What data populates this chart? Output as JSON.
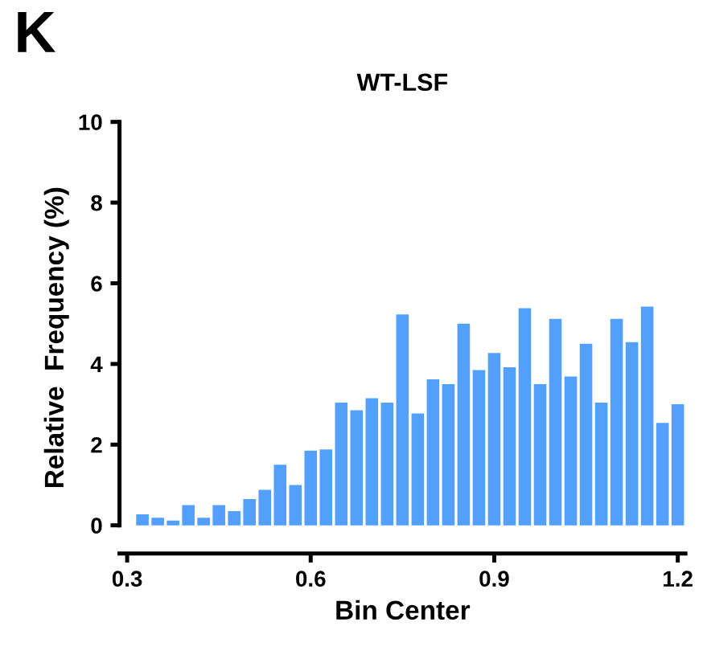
{
  "chart_data": {
    "type": "histogram",
    "title": "WT-LSF",
    "xlabel": "Bin Center",
    "ylabel": "Relative  Frequency (%)",
    "annotations": [
      "K"
    ],
    "color": "#529ffc",
    "bins": [
      0.2875,
      0.3125,
      0.3375,
      0.3625,
      0.3875,
      0.4125,
      0.4375,
      0.4625,
      0.4875,
      0.5125,
      0.5375,
      0.5625,
      0.5875,
      0.6125,
      0.6375,
      0.6625,
      0.6875,
      0.7125,
      0.7375,
      0.7625,
      0.7875,
      0.8125,
      0.8375,
      0.8625,
      0.8875,
      0.9125,
      0.9375,
      0.9625,
      0.9875,
      1.0125,
      1.0375,
      1.0625,
      1.0875,
      1.1125,
      1.1375,
      1.1625,
      1.1875,
      1.2125
    ],
    "values": [
      0.0,
      0.27,
      0.19,
      0.12,
      0.5,
      0.19,
      0.5,
      0.35,
      0.65,
      0.88,
      1.5,
      1.0,
      1.85,
      1.88,
      3.04,
      2.85,
      3.15,
      3.04,
      5.23,
      2.77,
      3.62,
      3.5,
      5.0,
      3.85,
      4.27,
      3.92,
      5.38,
      3.5,
      5.12,
      3.69,
      4.5,
      3.04,
      5.12,
      4.54,
      5.42,
      2.54,
      3.0
    ],
    "xlim": [
      0.2875,
      1.2125
    ],
    "ylim": [
      -0.7,
      10
    ],
    "xticks": [
      0.3,
      0.6,
      0.9,
      1.2
    ],
    "yticks": [
      0,
      2,
      4,
      6,
      8,
      10
    ],
    "grid": false,
    "legend": false
  }
}
